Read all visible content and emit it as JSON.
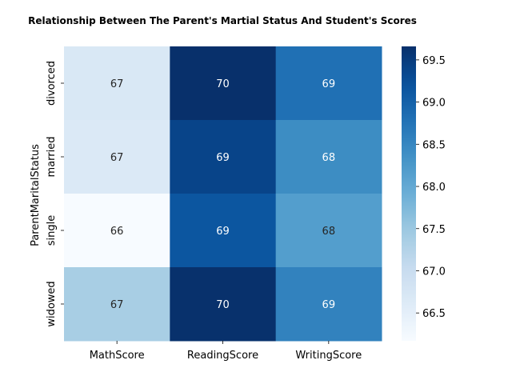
{
  "chart_data": {
    "type": "heatmap",
    "title": "Relationship Between The Parent's Martial Status And Student's Scores",
    "xlabel": "",
    "ylabel": "ParentMaritalStatus",
    "x_categories": [
      "MathScore",
      "ReadingScore",
      "WritingScore"
    ],
    "y_categories": [
      "divorced",
      "married",
      "single",
      "widowed"
    ],
    "values": [
      [
        66.69,
        69.66,
        68.8
      ],
      [
        66.66,
        69.39,
        68.42
      ],
      [
        66.17,
        69.16,
        68.17
      ],
      [
        67.37,
        69.65,
        68.56
      ]
    ],
    "labels": [
      [
        "67",
        "70",
        "69"
      ],
      [
        "67",
        "69",
        "68"
      ],
      [
        "66",
        "69",
        "68"
      ],
      [
        "67",
        "70",
        "69"
      ]
    ],
    "colorbar": {
      "vmin": 66.17,
      "vmax": 69.66,
      "ticks": [
        66.5,
        67.0,
        67.5,
        68.0,
        68.5,
        69.0,
        69.5
      ],
      "tick_labels": [
        "66.5",
        "67.0",
        "67.5",
        "68.0",
        "68.5",
        "69.0",
        "69.5"
      ],
      "colormap": "Blues"
    }
  }
}
